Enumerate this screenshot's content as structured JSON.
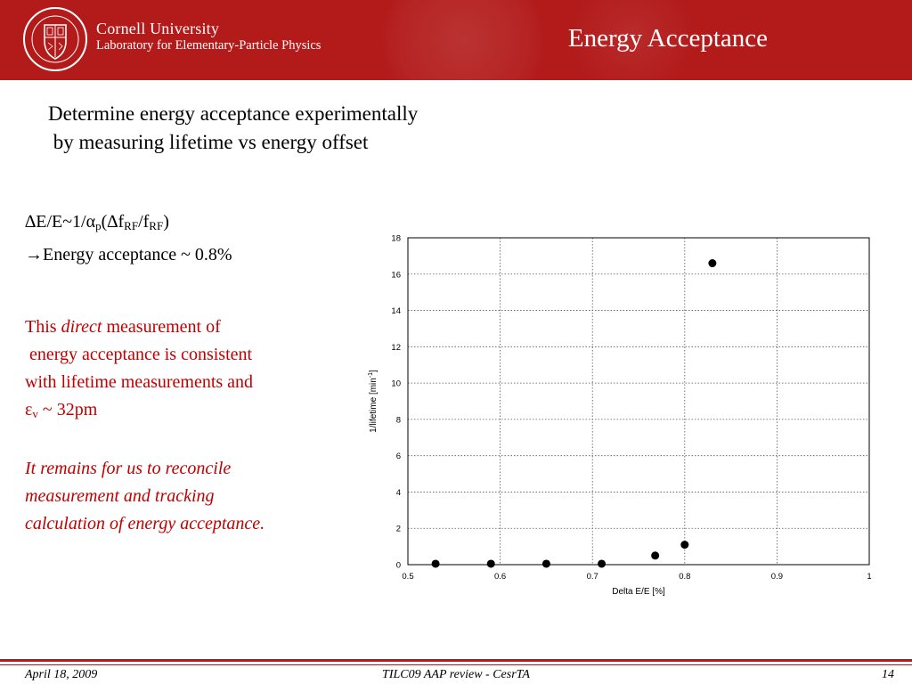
{
  "header": {
    "university": "Cornell University",
    "lab": "Laboratory for Elementary-Particle Physics",
    "title": "Energy Acceptance",
    "colors": {
      "bar": "#b31b1b",
      "text": "#ffffff"
    },
    "logo_icon": "cornell-shield-seal-icon"
  },
  "intro": {
    "line1": "Determine energy acceptance experimentally",
    "line2": " by measuring lifetime vs energy offset"
  },
  "formula": {
    "line1_a": "∆E/E~1/α",
    "line1_sub1": "p",
    "line1_b": "(∆f",
    "line1_sub2": "RF",
    "line1_c": "/f",
    "line1_sub3": "RF",
    "line1_d": ")",
    "line2": "→Energy acceptance ~ 0.8%"
  },
  "red_text": {
    "color": "#c00000",
    "p1_l1_a": "This ",
    "p1_l1_em": "direct",
    "p1_l1_b": " measurement of",
    "p1_l2": " energy acceptance is consistent",
    "p1_l3": "with lifetime measurements and",
    "p1_l4_a": "ε",
    "p1_l4_sub": "v",
    "p1_l4_b": " ~ 32pm",
    "p2_l1": "It remains for us to reconcile",
    "p2_l2": "measurement and tracking",
    "p2_l3": "calculation of energy acceptance."
  },
  "chart_data": {
    "type": "scatter",
    "xlabel": "Delta E/E [%]",
    "ylabel_text": "1/lifetime [min",
    "ylabel_sup": "-1",
    "ylabel_close": "]",
    "xlim": [
      0.5,
      1.0
    ],
    "ylim": [
      0,
      18
    ],
    "xticks": [
      "0.5",
      "0.6",
      "0.7",
      "0.8",
      "0.9",
      "1"
    ],
    "yticks": [
      "0",
      "2",
      "4",
      "6",
      "8",
      "10",
      "12",
      "14",
      "16",
      "18"
    ],
    "grid": "dotted",
    "points": [
      {
        "x": 0.53,
        "y": 0.05
      },
      {
        "x": 0.59,
        "y": 0.05
      },
      {
        "x": 0.65,
        "y": 0.05
      },
      {
        "x": 0.71,
        "y": 0.05
      },
      {
        "x": 0.768,
        "y": 0.5
      },
      {
        "x": 0.8,
        "y": 1.1
      },
      {
        "x": 0.83,
        "y": 16.6
      }
    ]
  },
  "footer": {
    "date": "April 18, 2009",
    "center": "TILC09 AAP review - CesrTA",
    "page": "14",
    "rule_color": "#b31b1b"
  }
}
